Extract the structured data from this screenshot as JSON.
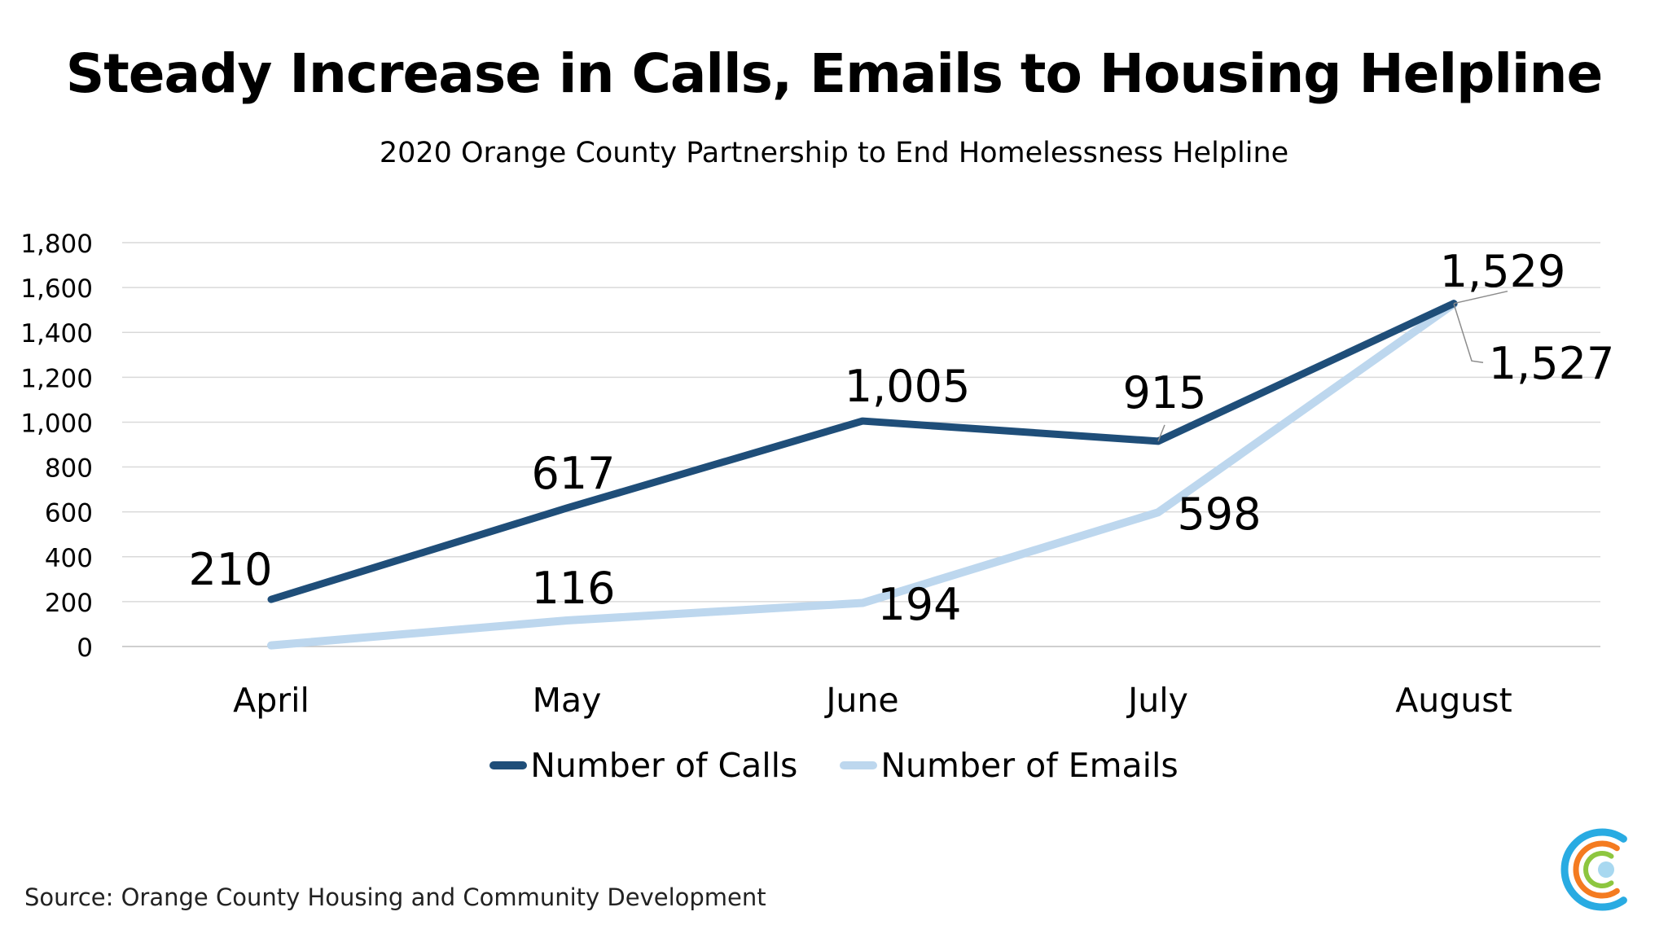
{
  "header": {
    "title": "Steady Increase in Calls, Emails to Housing Helpline",
    "subtitle": "2020 Orange County Partnership to End Homelessness Helpline"
  },
  "footer": {
    "source": "Source: Orange County Housing and Community Development"
  },
  "logo": {
    "icon": "concentric-c-logo-icon",
    "colors": [
      "#29abe2",
      "#f47b20",
      "#8dc63f",
      "#a8d8f0"
    ]
  },
  "chart_data": {
    "type": "line",
    "title": "Steady Increase in Calls, Emails to Housing Helpline",
    "subtitle": "2020 Orange County Partnership to End Homelessness Helpline",
    "xlabel": "",
    "ylabel": "",
    "categories": [
      "April",
      "May",
      "June",
      "July",
      "August"
    ],
    "ylim": [
      0,
      1800
    ],
    "yticks": [
      0,
      200,
      400,
      600,
      800,
      1000,
      1200,
      1400,
      1600,
      1800
    ],
    "ytick_labels": [
      "0",
      "200",
      "400",
      "600",
      "800",
      "1,000",
      "1,200",
      "1,400",
      "1,600",
      "1,800"
    ],
    "grid": true,
    "legend_position": "bottom",
    "series": [
      {
        "name": "Number of Calls",
        "color": "#1f4e79",
        "values": [
          210,
          617,
          1005,
          915,
          1529
        ],
        "labels": [
          "210",
          "617",
          "1,005",
          "915",
          "1,529"
        ]
      },
      {
        "name": "Number of Emails",
        "color": "#bdd7ee",
        "values": [
          5,
          116,
          194,
          598,
          1527
        ],
        "labels": [
          "",
          "116",
          "194",
          "598",
          "1,527"
        ]
      }
    ]
  }
}
